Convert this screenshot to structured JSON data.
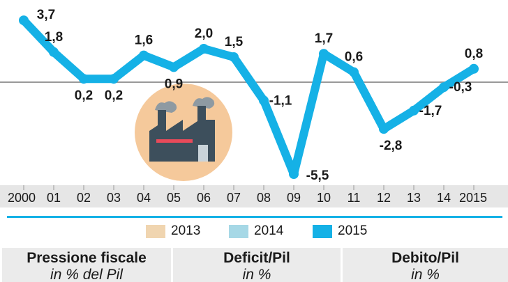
{
  "chart_data": {
    "type": "line",
    "categories": [
      "2000",
      "01",
      "02",
      "03",
      "04",
      "05",
      "06",
      "07",
      "08",
      "09",
      "10",
      "11",
      "12",
      "13",
      "14",
      "2015"
    ],
    "values": [
      3.7,
      1.8,
      0.2,
      0.2,
      1.6,
      0.9,
      2.0,
      1.5,
      -1.1,
      -5.5,
      1.7,
      0.6,
      -2.8,
      -1.7,
      -0.3,
      0.8
    ],
    "value_labels": [
      "3,7",
      "1,8",
      "0,2",
      "0,2",
      "1,6",
      "0,9",
      "2,0",
      "1,5",
      "-1,1",
      "-5,5",
      "1,7",
      "0,6",
      "-2,8",
      "-1,7",
      "-0,3",
      "0,8"
    ],
    "ylim": [
      -6.0,
      4.0
    ],
    "line_color": "#15b1e6",
    "axis_band_color": "#e6e6e6",
    "zero_line_color": "#999999"
  },
  "legend": {
    "items": [
      {
        "label": "2013",
        "color": "#f0d5b0"
      },
      {
        "label": "2014",
        "color": "#a6d8e6"
      },
      {
        "label": "2015",
        "color": "#15b1e6"
      }
    ]
  },
  "panels": [
    {
      "title": "Pressione fiscale",
      "subtitle": "in % del Pil"
    },
    {
      "title": "Deficit/Pil",
      "subtitle": "in %"
    },
    {
      "title": "Debito/Pil",
      "subtitle": "in %"
    }
  ],
  "icon": {
    "name": "factory-icon",
    "circle_color": "#f5c99b",
    "building_color": "#3d4f5c",
    "accent_color": "#e94a5a"
  },
  "divider_color": "#15b1e6"
}
